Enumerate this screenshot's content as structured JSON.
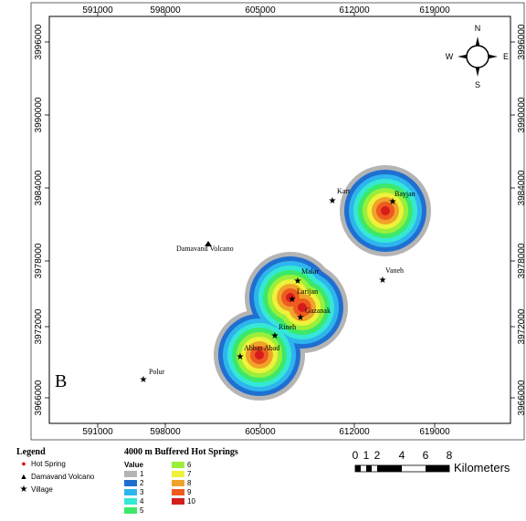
{
  "panel_label": "B",
  "x_ticks": [
    "591000",
    "598000",
    "605000",
    "612000",
    "619000"
  ],
  "y_ticks": [
    "3996000",
    "3990000",
    "3984000",
    "3978000",
    "3972000",
    "3966000"
  ],
  "compass": {
    "n": "N",
    "s": "S",
    "e": "E",
    "w": "W"
  },
  "places": {
    "kart": "Kart",
    "bayjan": "Bayjan",
    "damavand": "Damavand Volcano",
    "vaneh": "Vaneh",
    "malar": "Malar",
    "larijan": "Larijan",
    "gazanak": "Gazanak",
    "rineh": "Rineh",
    "abbas_abad": "Abbas Abad",
    "polur": "Polur"
  },
  "legend": {
    "title": "Legend",
    "hot_spring": "Hot Spring",
    "volcano": "Damavand Volcano",
    "village": "Village"
  },
  "buffer_legend": {
    "title": "4000 m Buffered Hot Springs",
    "value_label": "Value",
    "values": [
      "1",
      "2",
      "3",
      "4",
      "5",
      "6",
      "7",
      "8",
      "9",
      "10"
    ],
    "colors": [
      "#b4b4b4",
      "#1f6fd1",
      "#2fb5ee",
      "#35e8d5",
      "#3ce86a",
      "#9bef3a",
      "#eef23a",
      "#f0a32a",
      "#ee5a1f",
      "#d41e1e"
    ]
  },
  "scale_bar": {
    "labels": [
      "0",
      "1",
      "2",
      "4",
      "6",
      "8"
    ],
    "unit": "Kilometers"
  },
  "colors": {
    "hot_spring": "#e01818",
    "frame": "#000000"
  }
}
